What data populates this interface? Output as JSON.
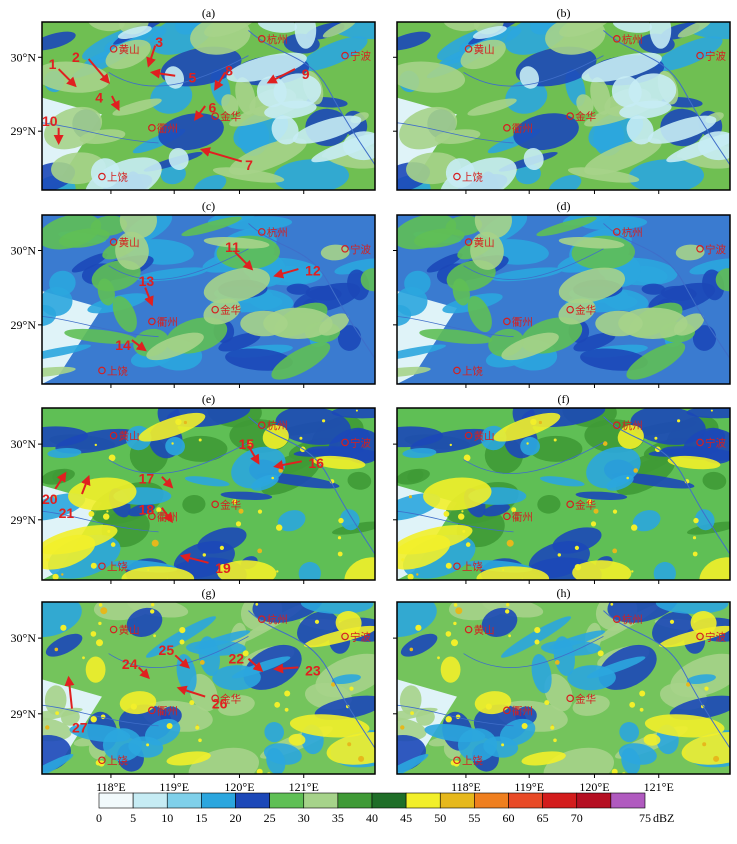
{
  "panels": [
    {
      "label": "(a)",
      "y_ticks": [
        "30°N",
        "29°N"
      ],
      "x_ticks": [],
      "annotations": [
        {
          "n": "1"
        },
        {
          "n": "2"
        },
        {
          "n": "3"
        },
        {
          "n": "4"
        },
        {
          "n": "5"
        },
        {
          "n": "6"
        },
        {
          "n": "7"
        },
        {
          "n": "8"
        },
        {
          "n": "9"
        },
        {
          "n": "10"
        }
      ]
    },
    {
      "label": "(b)",
      "y_ticks": [],
      "x_ticks": [],
      "annotations": []
    },
    {
      "label": "(c)",
      "y_ticks": [
        "30°N",
        "29°N"
      ],
      "x_ticks": [],
      "annotations": [
        {
          "n": "11"
        },
        {
          "n": "12"
        },
        {
          "n": "13"
        },
        {
          "n": "14"
        }
      ]
    },
    {
      "label": "(d)",
      "y_ticks": [],
      "x_ticks": [],
      "annotations": []
    },
    {
      "label": "(e)",
      "y_ticks": [
        "30°N",
        "29°N"
      ],
      "x_ticks": [],
      "annotations": [
        {
          "n": "15"
        },
        {
          "n": "16"
        },
        {
          "n": "17"
        },
        {
          "n": "18"
        },
        {
          "n": "19"
        },
        {
          "n": "20"
        },
        {
          "n": "21"
        }
      ]
    },
    {
      "label": "(f)",
      "y_ticks": [],
      "x_ticks": [],
      "annotations": []
    },
    {
      "label": "(g)",
      "y_ticks": [
        "30°N",
        "29°N"
      ],
      "x_ticks": [
        "118°E",
        "119°E",
        "120°E",
        "121°E"
      ],
      "annotations": [
        {
          "n": "22"
        },
        {
          "n": "23"
        },
        {
          "n": "24"
        },
        {
          "n": "25"
        },
        {
          "n": "26"
        },
        {
          "n": "27"
        }
      ]
    },
    {
      "label": "(h)",
      "y_ticks": [],
      "x_ticks": [
        "118°E",
        "119°E",
        "120°E",
        "121°E"
      ],
      "annotations": []
    }
  ],
  "cities": [
    "黄山",
    "杭州",
    "宁波",
    "衢州",
    "金华",
    "上饶"
  ],
  "colorbar": {
    "ticks": [
      "0",
      "5",
      "10",
      "15",
      "20",
      "25",
      "30",
      "35",
      "40",
      "45",
      "50",
      "55",
      "60",
      "65",
      "70",
      "75"
    ],
    "unit": "dBZ",
    "colors": [
      "#f2fafc",
      "#c6ecf4",
      "#7fd0ea",
      "#2ba6de",
      "#1c48b8",
      "#5fbf55",
      "#a6d38a",
      "#3f9a36",
      "#1f6e28",
      "#f2ef2a",
      "#e6b81c",
      "#ef7f1f",
      "#e84a26",
      "#d31c1c",
      "#b50f22",
      "#b05abf"
    ]
  },
  "map_colors": {
    "water": "#3f6ec9",
    "frame": "#000000",
    "city": "#d42020",
    "arrow": "#e02020"
  }
}
